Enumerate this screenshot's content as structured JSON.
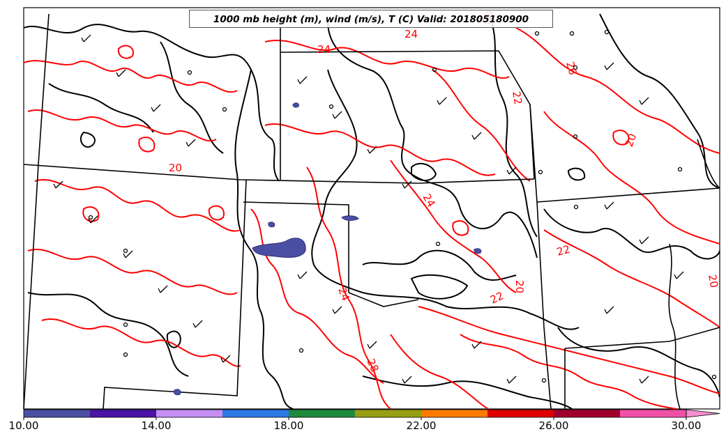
{
  "title": "1000 mb height (m), wind (m/s), T (C) Valid: 201805180900",
  "contour_labels": [
    "24",
    "24",
    "26",
    "22",
    "20",
    "20",
    "24",
    "22",
    "24",
    "22",
    "28",
    "20",
    "20",
    "20"
  ],
  "colorbar": {
    "colors": [
      "#4b4fa3",
      "#4a14a4",
      "#c58ef2",
      "#2e78e6",
      "#1d8a3c",
      "#979e11",
      "#ff7b00",
      "#e00000",
      "#a0002b",
      "#f050a8"
    ],
    "extend_color": "#f48fd0",
    "tick_labels": [
      "10.00",
      "14.00",
      "18.00",
      "22.00",
      "26.00",
      "30.00"
    ]
  },
  "colors": {
    "temperature_contour": "#ff0000",
    "height_contour": "#000000",
    "borders": "#000000"
  }
}
